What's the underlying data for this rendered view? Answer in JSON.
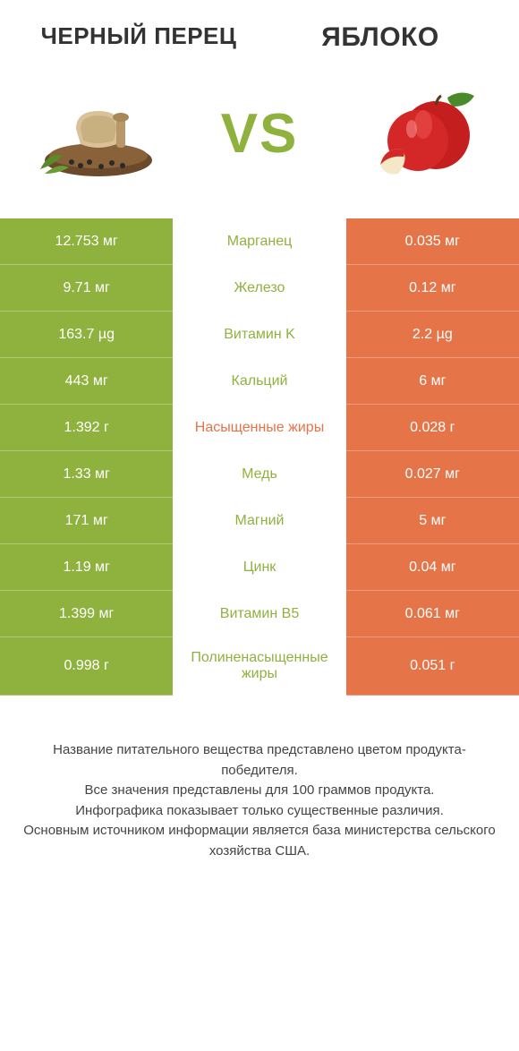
{
  "products": {
    "left": {
      "title": "ЧЕРНЫЙ ПЕРЕЦ",
      "color": "#8fb23f"
    },
    "right": {
      "title": "ЯБЛОКО",
      "color": "#e67449"
    }
  },
  "vs_label": "VS",
  "vs_color": "#8fb23f",
  "mid_colors": {
    "left_win": "#8fb23f",
    "right_win": "#e67449"
  },
  "rows": [
    {
      "left": "12.753 мг",
      "label": "Марганец",
      "right": "0.035 мг",
      "winner": "left"
    },
    {
      "left": "9.71 мг",
      "label": "Железо",
      "right": "0.12 мг",
      "winner": "left"
    },
    {
      "left": "163.7 µg",
      "label": "Витамин K",
      "right": "2.2 µg",
      "winner": "left"
    },
    {
      "left": "443 мг",
      "label": "Кальций",
      "right": "6 мг",
      "winner": "left"
    },
    {
      "left": "1.392 г",
      "label": "Насыщенные жиры",
      "right": "0.028 г",
      "winner": "right"
    },
    {
      "left": "1.33 мг",
      "label": "Медь",
      "right": "0.027 мг",
      "winner": "left"
    },
    {
      "left": "171 мг",
      "label": "Магний",
      "right": "5 мг",
      "winner": "left"
    },
    {
      "left": "1.19 мг",
      "label": "Цинк",
      "right": "0.04 мг",
      "winner": "left"
    },
    {
      "left": "1.399 мг",
      "label": "Витамин B5",
      "right": "0.061 мг",
      "winner": "left"
    },
    {
      "left": "0.998 г",
      "label": "Полиненасыщенные жиры",
      "right": "0.051 г",
      "winner": "left"
    }
  ],
  "footer_lines": [
    "Название питательного вещества представлено цветом продукта-победителя.",
    "Все значения представлены для 100 граммов продукта.",
    "Инфографика показывает только существенные различия.",
    "Основным источником информации является база министерства сельского хозяйства США."
  ],
  "style": {
    "left_bg": "#8fb23f",
    "right_bg": "#e67449",
    "row_divider": "rgba(255,255,255,0.35)",
    "font_size_value": 16,
    "font_size_label": 16
  }
}
